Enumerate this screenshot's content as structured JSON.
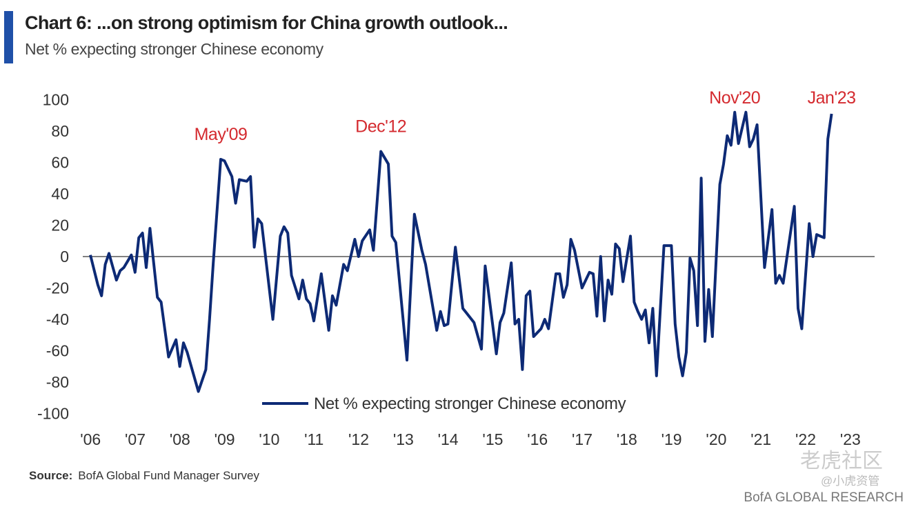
{
  "header": {
    "title": "Chart 6: ...on strong optimism for China growth outlook...",
    "subtitle": "Net % expecting stronger Chinese economy",
    "accent_color": "#1f50a8"
  },
  "footer": {
    "source_label": "Source:",
    "source_text": "BofA Global Fund Manager Survey",
    "brand": "BofA GLOBAL RESEARCH",
    "watermark_main": "老虎社区",
    "watermark_handle": "@小虎资管"
  },
  "chart_data": {
    "type": "line",
    "title": "",
    "xlabel": "",
    "ylabel": "",
    "ylim": [
      -100,
      100
    ],
    "yticks": [
      100,
      80,
      60,
      40,
      20,
      0,
      -20,
      -40,
      -60,
      -80,
      -100
    ],
    "xticks": [
      "'06",
      "'07",
      "'08",
      "'09",
      "'10",
      "'11",
      "'12",
      "'13",
      "'14",
      "'15",
      "'16",
      "'17",
      "'18",
      "'19",
      "'20",
      "'21",
      "'22",
      "'23"
    ],
    "grid": false,
    "zero_line": true,
    "legend_position": "bottom-center",
    "line_color": "#0d2a75",
    "annotation_color": "#d42a2f",
    "series": [
      {
        "name": "Net % expecting stronger Chinese economy",
        "points": [
          [
            "2006-06",
            1
          ],
          [
            "2006-08",
            -18
          ],
          [
            "2006-09",
            -25
          ],
          [
            "2006-10",
            -5
          ],
          [
            "2006-11",
            2
          ],
          [
            "2007-01",
            -15
          ],
          [
            "2007-02",
            -9
          ],
          [
            "2007-03",
            -7
          ],
          [
            "2007-05",
            1
          ],
          [
            "2007-06",
            -10
          ],
          [
            "2007-07",
            12
          ],
          [
            "2007-08",
            15
          ],
          [
            "2007-09",
            -7
          ],
          [
            "2007-10",
            18
          ],
          [
            "2007-12",
            -26
          ],
          [
            "2008-01",
            -29
          ],
          [
            "2008-03",
            -64
          ],
          [
            "2008-05",
            -53
          ],
          [
            "2008-06",
            -70
          ],
          [
            "2008-07",
            -55
          ],
          [
            "2008-08",
            -61
          ],
          [
            "2008-11",
            -86
          ],
          [
            "2009-01",
            -72
          ],
          [
            "2009-02",
            -40
          ],
          [
            "2009-03",
            -4
          ],
          [
            "2009-05",
            62
          ],
          [
            "2009-06",
            61
          ],
          [
            "2009-08",
            51
          ],
          [
            "2009-09",
            34
          ],
          [
            "2009-10",
            49
          ],
          [
            "2009-12",
            48
          ],
          [
            "2010-01",
            51
          ],
          [
            "2010-02",
            6
          ],
          [
            "2010-03",
            24
          ],
          [
            "2010-04",
            21
          ],
          [
            "2010-07",
            -40
          ],
          [
            "2010-09",
            13
          ],
          [
            "2010-10",
            19
          ],
          [
            "2010-11",
            15
          ],
          [
            "2010-12",
            -12
          ],
          [
            "2011-02",
            -27
          ],
          [
            "2011-03",
            -15
          ],
          [
            "2011-04",
            -27
          ],
          [
            "2011-05",
            -30
          ],
          [
            "2011-06",
            -41
          ],
          [
            "2011-08",
            -11
          ],
          [
            "2011-10",
            -47
          ],
          [
            "2011-11",
            -25
          ],
          [
            "2011-12",
            -31
          ],
          [
            "2012-02",
            -5
          ],
          [
            "2012-03",
            -9
          ],
          [
            "2012-05",
            11
          ],
          [
            "2012-06",
            0
          ],
          [
            "2012-07",
            10
          ],
          [
            "2012-09",
            17
          ],
          [
            "2012-10",
            4
          ],
          [
            "2012-12",
            67
          ],
          [
            "2013-02",
            59
          ],
          [
            "2013-03",
            13
          ],
          [
            "2013-04",
            9
          ],
          [
            "2013-07",
            -66
          ],
          [
            "2013-09",
            27
          ],
          [
            "2013-11",
            4
          ],
          [
            "2013-12",
            -5
          ],
          [
            "2014-03",
            -47
          ],
          [
            "2014-04",
            -35
          ],
          [
            "2014-05",
            -44
          ],
          [
            "2014-06",
            -43
          ],
          [
            "2014-08",
            6
          ],
          [
            "2014-10",
            -33
          ],
          [
            "2014-11",
            -36
          ],
          [
            "2014-12",
            -39
          ],
          [
            "2015-01",
            -42
          ],
          [
            "2015-03",
            -59
          ],
          [
            "2015-04",
            -6
          ],
          [
            "2015-07",
            -62
          ],
          [
            "2015-08",
            -42
          ],
          [
            "2015-09",
            -36
          ],
          [
            "2015-11",
            -4
          ],
          [
            "2015-12",
            -43
          ],
          [
            "2016-01",
            -40
          ],
          [
            "2016-02",
            -72
          ],
          [
            "2016-03",
            -25
          ],
          [
            "2016-04",
            -22
          ],
          [
            "2016-05",
            -51
          ],
          [
            "2016-07",
            -46
          ],
          [
            "2016-08",
            -40
          ],
          [
            "2016-09",
            -46
          ],
          [
            "2016-11",
            -11
          ],
          [
            "2016-12",
            -11
          ],
          [
            "2017-01",
            -26
          ],
          [
            "2017-02",
            -18
          ],
          [
            "2017-03",
            11
          ],
          [
            "2017-04",
            4
          ],
          [
            "2017-06",
            -20
          ],
          [
            "2017-08",
            -10
          ],
          [
            "2017-09",
            -11
          ],
          [
            "2017-10",
            -38
          ],
          [
            "2017-11",
            0
          ],
          [
            "2017-12",
            -41
          ],
          [
            "2018-01",
            -15
          ],
          [
            "2018-02",
            -24
          ],
          [
            "2018-03",
            8
          ],
          [
            "2018-04",
            5
          ],
          [
            "2018-05",
            -16
          ],
          [
            "2018-07",
            13
          ],
          [
            "2018-08",
            -29
          ],
          [
            "2018-09",
            -35
          ],
          [
            "2018-10",
            -40
          ],
          [
            "2018-11",
            -34
          ],
          [
            "2018-12",
            -55
          ],
          [
            "2019-01",
            -33
          ],
          [
            "2019-02",
            -76
          ],
          [
            "2019-04",
            7
          ],
          [
            "2019-06",
            7
          ],
          [
            "2019-07",
            -43
          ],
          [
            "2019-08",
            -64
          ],
          [
            "2019-09",
            -76
          ],
          [
            "2019-10",
            -61
          ],
          [
            "2019-11",
            -1
          ],
          [
            "2019-12",
            -9
          ],
          [
            "2020-01",
            -44
          ],
          [
            "2020-02",
            50
          ],
          [
            "2020-03",
            -54
          ],
          [
            "2020-04",
            -21
          ],
          [
            "2020-05",
            -51
          ],
          [
            "2020-07",
            46
          ],
          [
            "2020-08",
            59
          ],
          [
            "2020-09",
            77
          ],
          [
            "2020-10",
            71
          ],
          [
            "2020-11",
            92
          ],
          [
            "2020-12",
            72
          ],
          [
            "2021-02",
            92
          ],
          [
            "2021-03",
            70
          ],
          [
            "2021-04",
            75
          ],
          [
            "2021-05",
            84
          ],
          [
            "2021-07",
            -7
          ],
          [
            "2021-09",
            30
          ],
          [
            "2021-10",
            -17
          ],
          [
            "2021-11",
            -12
          ],
          [
            "2021-12",
            -17
          ],
          [
            "2022-03",
            32
          ],
          [
            "2022-04",
            -33
          ],
          [
            "2022-05",
            -46
          ],
          [
            "2022-07",
            21
          ],
          [
            "2022-08",
            0
          ],
          [
            "2022-09",
            14
          ],
          [
            "2022-11",
            12
          ],
          [
            "2022-12",
            75
          ],
          [
            "2023-01",
            91
          ]
        ]
      }
    ],
    "annotations": [
      {
        "label": "May'09",
        "date": "2009-05"
      },
      {
        "label": "Dec'12",
        "date": "2012-12"
      },
      {
        "label": "Nov'20",
        "date": "2020-11"
      },
      {
        "label": "Jan'23",
        "date": "2023-01"
      }
    ]
  }
}
